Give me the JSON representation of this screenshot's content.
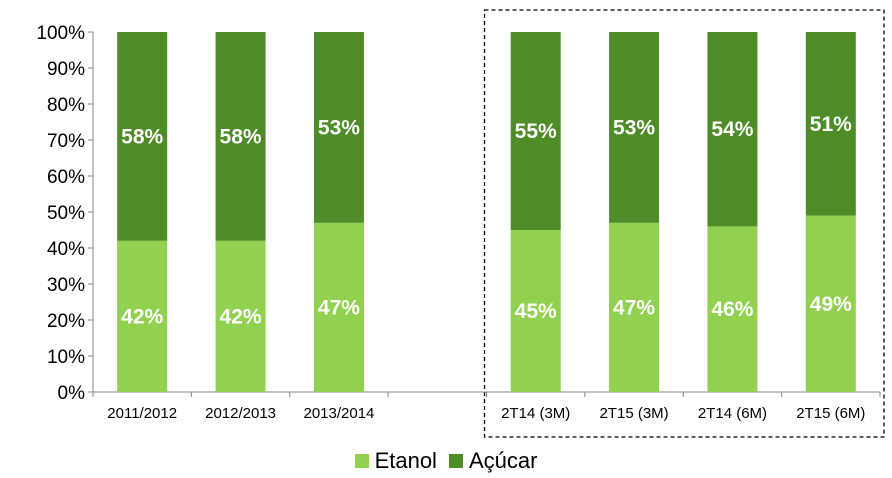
{
  "colors": {
    "etanol": "#92d050",
    "acucar": "#4e8c27"
  },
  "legend": [
    {
      "label": "Etanol",
      "color": "#92d050"
    },
    {
      "label": "Açúcar",
      "color": "#4e8c27"
    }
  ],
  "chart_data": {
    "type": "bar",
    "stacked": true,
    "categories": [
      "2011/2012",
      "2012/2013",
      "2013/2014",
      "",
      "2T14 (3M)",
      "2T15 (3M)",
      "2T14 (6M)",
      "2T15 (6M)"
    ],
    "series": [
      {
        "name": "Etanol",
        "values": [
          42,
          42,
          47,
          null,
          45,
          47,
          46,
          49
        ],
        "labels": [
          "42%",
          "42%",
          "47%",
          "",
          "45%",
          "47%",
          "46%",
          "49%"
        ]
      },
      {
        "name": "Açúcar",
        "values": [
          58,
          58,
          53,
          null,
          55,
          53,
          54,
          51
        ],
        "labels": [
          "58%",
          "58%",
          "53%",
          "",
          "55%",
          "53%",
          "54%",
          "51%"
        ]
      }
    ],
    "yticks": [
      "0%",
      "10%",
      "20%",
      "30%",
      "40%",
      "50%",
      "60%",
      "70%",
      "80%",
      "90%",
      "100%"
    ],
    "ylim": [
      0,
      100
    ],
    "grid": false,
    "legend_position": "bottom",
    "highlight_box": "dashed box around 2T14 (3M) – 2T15 (6M)"
  }
}
